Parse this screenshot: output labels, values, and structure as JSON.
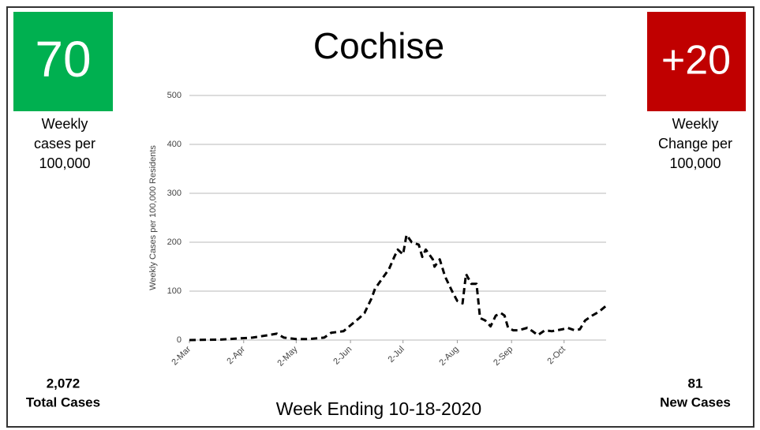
{
  "left_panel": {
    "metric": "70",
    "metric_caption": [
      "Weekly",
      "cases per",
      "100,000"
    ],
    "total": "2,072",
    "total_caption": "Total Cases"
  },
  "right_panel": {
    "metric": "+20",
    "metric_caption": [
      "Weekly",
      "Change per",
      "100,000"
    ],
    "total": "81",
    "total_caption": "New Cases"
  },
  "footer": "Week Ending 10-18-2020",
  "chart_data": {
    "type": "line",
    "title": "Cochise",
    "y_label": "Weekly Cases per 100,000 Residents",
    "color": "#000000",
    "grid": true,
    "x": [
      "2020-03-02",
      "2020-03-20",
      "2020-03-29",
      "2020-04-07",
      "2020-04-16",
      "2020-04-21",
      "2020-04-25",
      "2020-05-02",
      "2020-05-09",
      "2020-05-18",
      "2020-05-22",
      "2020-05-29",
      "2020-06-02",
      "2020-06-07",
      "2020-06-10",
      "2020-06-14",
      "2020-06-16",
      "2020-06-20",
      "2020-06-24",
      "2020-06-27",
      "2020-06-29",
      "2020-07-02",
      "2020-07-04",
      "2020-07-07",
      "2020-07-11",
      "2020-07-13",
      "2020-07-15",
      "2020-07-19",
      "2020-07-20",
      "2020-07-23",
      "2020-07-26",
      "2020-07-30",
      "2020-08-02",
      "2020-08-05",
      "2020-08-07",
      "2020-08-10",
      "2020-08-13",
      "2020-08-15",
      "2020-08-18",
      "2020-08-21",
      "2020-08-24",
      "2020-08-27",
      "2020-08-29",
      "2020-08-31",
      "2020-09-03",
      "2020-09-06",
      "2020-09-11",
      "2020-09-14",
      "2020-09-17",
      "2020-09-21",
      "2020-09-25",
      "2020-10-01",
      "2020-10-04",
      "2020-10-08",
      "2020-10-11",
      "2020-10-14",
      "2020-10-18",
      "2020-10-22",
      "2020-10-26"
    ],
    "values": [
      0,
      1,
      3,
      5,
      10,
      13,
      5,
      2,
      2,
      5,
      15,
      18,
      30,
      45,
      55,
      85,
      105,
      125,
      145,
      170,
      185,
      175,
      215,
      200,
      195,
      170,
      185,
      165,
      150,
      165,
      130,
      100,
      80,
      75,
      135,
      115,
      115,
      45,
      40,
      28,
      50,
      55,
      50,
      25,
      20,
      20,
      25,
      18,
      10,
      20,
      18,
      22,
      25,
      20,
      22,
      40,
      50,
      58,
      70
    ],
    "xlim": [
      "2020-03-02",
      "2020-10-26"
    ],
    "xticks": [
      {
        "value": "2020-03-02",
        "label": "2-Mar"
      },
      {
        "value": "2020-04-02",
        "label": "2-Apr"
      },
      {
        "value": "2020-05-02",
        "label": "2-May"
      },
      {
        "value": "2020-06-02",
        "label": "2-Jun"
      },
      {
        "value": "2020-07-02",
        "label": "2-Jul"
      },
      {
        "value": "2020-08-02",
        "label": "2-Aug"
      },
      {
        "value": "2020-09-02",
        "label": "2-Sep"
      },
      {
        "value": "2020-10-02",
        "label": "2-Oct"
      }
    ],
    "ylim": [
      0,
      500
    ],
    "yticks": [
      0,
      100,
      200,
      300,
      400,
      500
    ]
  }
}
